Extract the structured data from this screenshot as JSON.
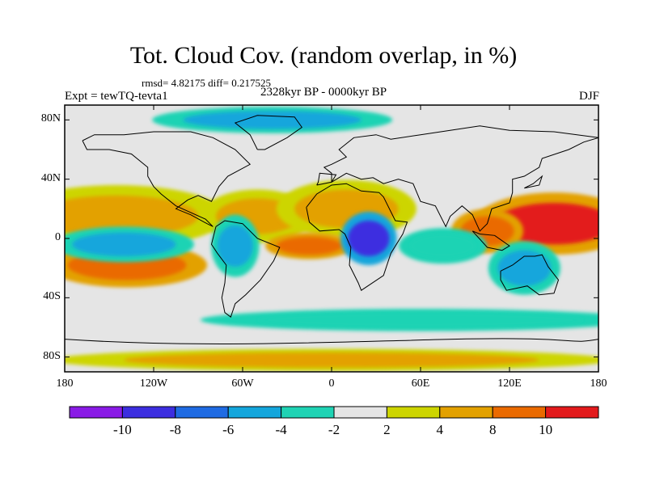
{
  "chart_data": {
    "type": "heatmap",
    "title": "Tot. Cloud Cov. (random overlap, in %)",
    "subtitle": "rmsd= 4.82175 diff= 0.217525",
    "left_label": "Expt = tewTQ-tevta1",
    "center_label": "2328kyr BP - 0000kyr BP",
    "right_label": "DJF",
    "x_ticks": [
      "180",
      "120W",
      "60W",
      "0",
      "60E",
      "120E",
      "180"
    ],
    "x_tick_values": [
      -180,
      -120,
      -60,
      0,
      60,
      120,
      180
    ],
    "y_ticks": [
      "80N",
      "40N",
      "0",
      "40S",
      "80S"
    ],
    "y_tick_values": [
      80,
      40,
      0,
      -40,
      -80
    ],
    "xlim": [
      -180,
      180
    ],
    "ylim": [
      -90,
      90
    ],
    "colorbar": {
      "labels": [
        "-10",
        "-8",
        "-6",
        "-4",
        "-2",
        "2",
        "4",
        "8",
        "10"
      ],
      "levels": [
        -10,
        -8,
        -6,
        -4,
        -2,
        2,
        4,
        8,
        10
      ],
      "colors": [
        "#8a1be6",
        "#3c2ee0",
        "#1f6be3",
        "#14a6dc",
        "#1fd3b4",
        "#e5e5e5",
        "#cdd500",
        "#e3a100",
        "#ea6a00",
        "#e31a1c"
      ]
    },
    "anomalies": [
      {
        "name": "north-pacific-tropical-positive",
        "lon": -145,
        "lat": 15,
        "value": 6
      },
      {
        "name": "south-pacific-positive",
        "lon": -138,
        "lat": -18,
        "value": 8
      },
      {
        "name": "equatorial-pacific-negative",
        "lon": -140,
        "lat": -4,
        "value": -5
      },
      {
        "name": "north-atlantic-positive",
        "lon": -50,
        "lat": 15,
        "value": 6
      },
      {
        "name": "north-africa-positive",
        "lon": 10,
        "lat": 20,
        "value": 6
      },
      {
        "name": "tropical-atlantic-positive",
        "lon": -15,
        "lat": -5,
        "value": 9
      },
      {
        "name": "central-africa-negative",
        "lon": 25,
        "lat": 0,
        "value": -9
      },
      {
        "name": "west-pacific-positive",
        "lon": 150,
        "lat": 10,
        "value": 10
      },
      {
        "name": "maritime-continent-positive",
        "lon": 105,
        "lat": 5,
        "value": 8
      },
      {
        "name": "australia-negative",
        "lon": 130,
        "lat": -20,
        "value": -5
      },
      {
        "name": "indian-ocean-negative",
        "lon": 75,
        "lat": -5,
        "value": -4
      },
      {
        "name": "amazon-negative",
        "lon": -65,
        "lat": -5,
        "value": -6
      },
      {
        "name": "southern-ocean-negative",
        "lon": 60,
        "lat": -55,
        "value": -4
      },
      {
        "name": "antarctic-positive",
        "lon": 0,
        "lat": -82,
        "value": 6
      },
      {
        "name": "arctic-negative",
        "lon": -40,
        "lat": 80,
        "value": -6
      }
    ]
  }
}
